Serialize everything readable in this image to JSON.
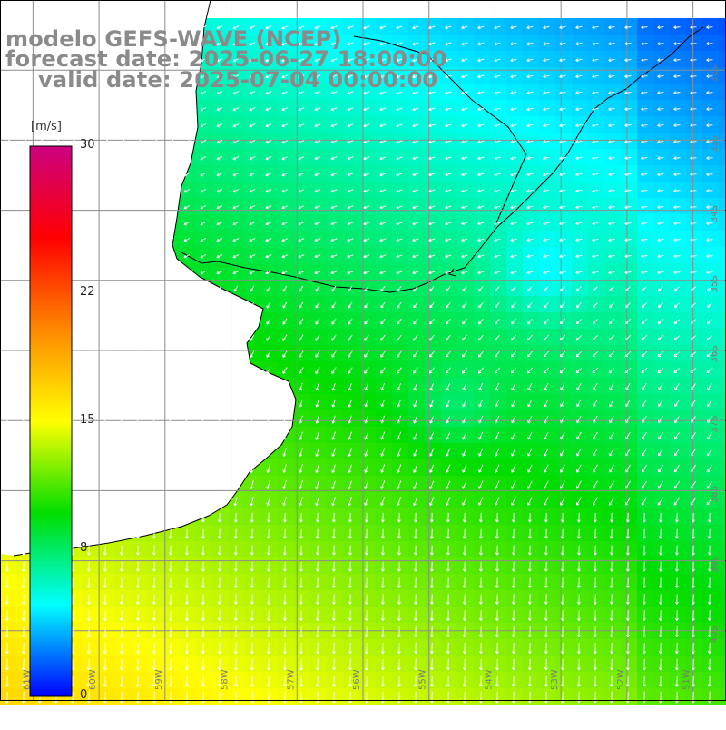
{
  "title": {
    "line1": "modelo GEFS-WAVE (NCEP)",
    "line2": "forecast date: 2025-06-27 18:00:00",
    "line3": "valid date: 2025-07-04 00:00:00"
  },
  "colorbar": {
    "unit": "[m/s]",
    "min": 0,
    "max": 30,
    "ticks": [
      {
        "value": 30,
        "label": "30"
      },
      {
        "value": 22,
        "label": "22"
      },
      {
        "value": 15,
        "label": "15"
      },
      {
        "value": 8,
        "label": "8"
      },
      {
        "value": 0,
        "label": "0"
      }
    ],
    "colors": [
      "#0000ff",
      "#00ffff",
      "#00dd00",
      "#ffff00",
      "#ff8800",
      "#ff0000",
      "#cc0080"
    ]
  },
  "map": {
    "lon_range": [
      -61.5,
      -50.5
    ],
    "lat_range": [
      -41,
      -31
    ],
    "lon_labels": [
      "61W",
      "60W",
      "59W",
      "58W",
      "57W",
      "56W",
      "55W",
      "54W",
      "53W",
      "52W",
      "51W"
    ],
    "lat_labels": [
      "32S",
      "33S",
      "34S",
      "35S",
      "36S",
      "37S",
      "38S",
      "39S",
      "40S"
    ],
    "land_color": "#ffffff",
    "coast_color": "#000000",
    "grid_color": "#8c8c8c",
    "arrow_color": "#ffffff"
  }
}
